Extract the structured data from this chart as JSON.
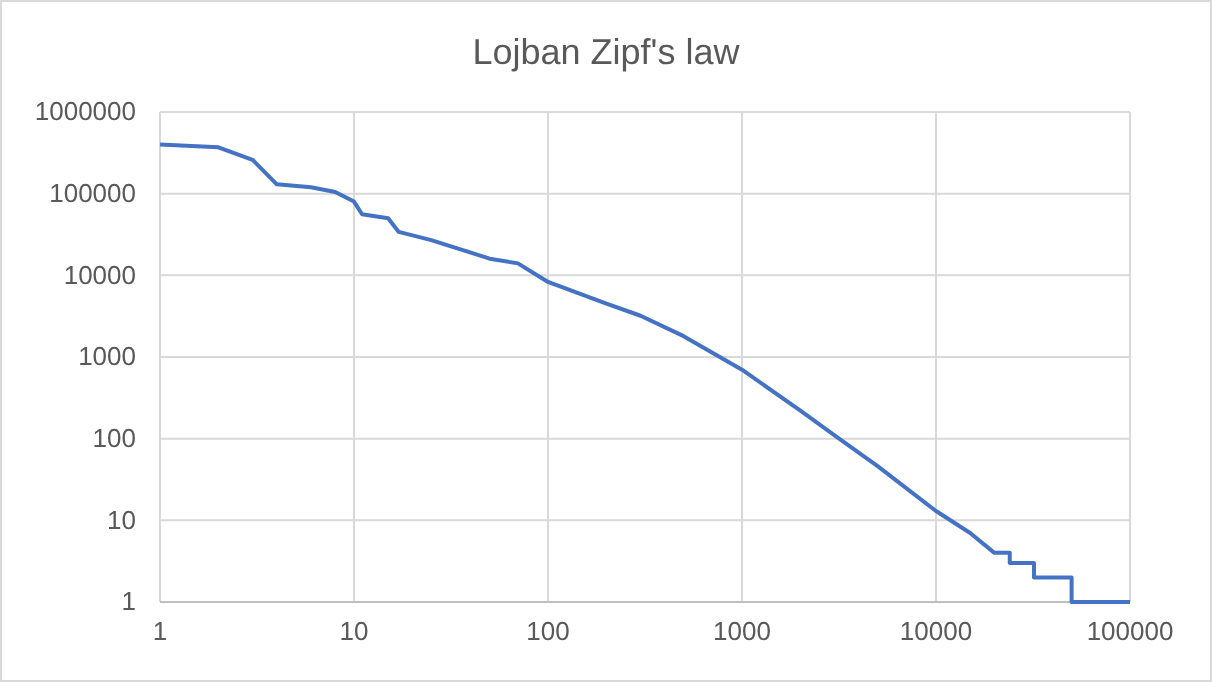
{
  "chart_data": {
    "type": "line",
    "title": "Lojban Zipf's law",
    "log": "xy",
    "grid": true,
    "xlim": [
      1,
      100000
    ],
    "xticks": [
      1,
      10,
      100,
      1000,
      10000,
      100000
    ],
    "ylim": [
      1,
      1000000
    ],
    "yticks": [
      1,
      10,
      100,
      1000,
      10000,
      100000,
      1000000
    ],
    "series": [
      {
        "color": "#4472c4",
        "x": [
          1,
          2,
          3,
          4,
          6,
          8,
          10,
          11,
          15,
          17,
          25,
          40,
          50,
          70,
          100,
          200,
          300,
          500,
          1000,
          2000,
          3000,
          5000,
          10000,
          15000,
          20000,
          24000,
          24000,
          32000,
          32000,
          50000,
          50000,
          100000
        ],
        "values": [
          400000,
          370000,
          260000,
          130000,
          120000,
          105000,
          80000,
          56000,
          50000,
          34000,
          27000,
          19000,
          16000,
          14000,
          8300,
          4500,
          3200,
          1800,
          700,
          220,
          110,
          46,
          13,
          7,
          4,
          4,
          3,
          3,
          2,
          2,
          1,
          1
        ]
      }
    ]
  }
}
